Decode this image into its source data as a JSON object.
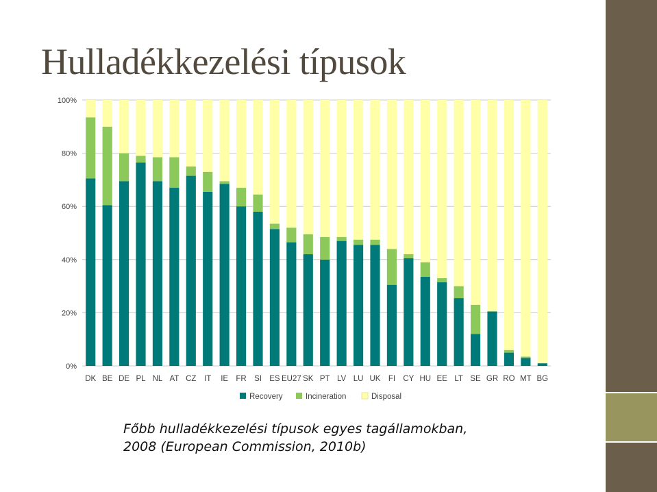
{
  "slide": {
    "title": "Hulladékkezelési típusok",
    "caption_line1": "Főbb hulladékkezelési típusok egyes tagállamokban,",
    "caption_line2": "2008 (European Commission, 2010b)"
  },
  "colors": {
    "title": "#524a3f",
    "deco_dark": "#6b5f4b",
    "deco_olive": "#99955e",
    "recovery": "#007a78",
    "incineration": "#8dc85a",
    "disposal": "#ffffa8",
    "gridline": "#c8c8c8"
  },
  "chart_data": {
    "type": "bar",
    "stacked": true,
    "categories": [
      "DK",
      "BE",
      "DE",
      "PL",
      "NL",
      "AT",
      "CZ",
      "IT",
      "IE",
      "FR",
      "SI",
      "ES",
      "EU27",
      "SK",
      "PT",
      "LV",
      "LU",
      "UK",
      "FI",
      "CY",
      "HU",
      "EE",
      "LT",
      "SE",
      "GR",
      "RO",
      "MT",
      "BG"
    ],
    "series": [
      {
        "name": "Recovery",
        "color": "#007a78",
        "values": [
          70.5,
          60.5,
          69.5,
          76.5,
          69.5,
          67,
          71.5,
          65.5,
          68.5,
          60,
          58,
          51.5,
          46.5,
          42,
          40,
          47,
          45.5,
          45.5,
          30.5,
          40.5,
          33.5,
          31.5,
          25.5,
          12,
          20.5,
          5,
          3,
          1
        ]
      },
      {
        "name": "Incineration",
        "color": "#8dc85a",
        "values": [
          23,
          29.5,
          10.5,
          2.5,
          9,
          11.5,
          3.5,
          7.5,
          1,
          7,
          6.5,
          2,
          5.5,
          7.5,
          8.5,
          1.5,
          2,
          2,
          13.5,
          1.5,
          5.5,
          1.5,
          4.5,
          11,
          0,
          1,
          0.5,
          0
        ]
      },
      {
        "name": "Disposal",
        "color": "#ffffa8",
        "values": [
          6.5,
          10,
          20,
          21,
          21.5,
          21.5,
          25,
          27,
          30.5,
          33,
          35.5,
          46.5,
          48,
          50.5,
          51.5,
          51.5,
          52.5,
          52.5,
          56,
          58,
          61,
          67,
          70,
          77,
          79.5,
          94,
          96.5,
          99
        ]
      }
    ],
    "yticks": [
      "0%",
      "20%",
      "40%",
      "60%",
      "80%",
      "100%"
    ],
    "ylim": [
      0,
      100
    ],
    "grid": true,
    "legend_position": "bottom"
  }
}
